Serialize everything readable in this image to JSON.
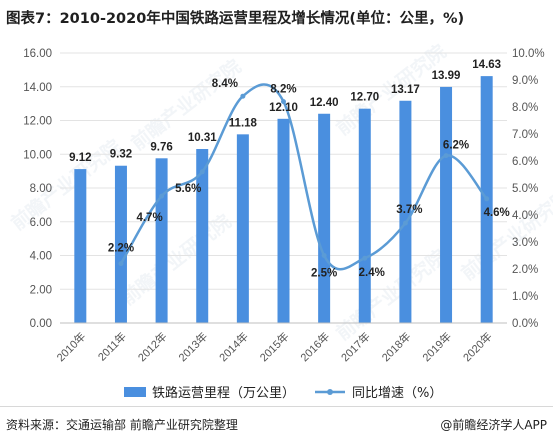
{
  "title": "图表7：2010-2020年中国铁路运营里程及增长情况(单位：公里，%)",
  "source": "资料来源：交通运输部 前瞻产业研究院整理",
  "credit": "@前瞻经济学人APP",
  "colors": {
    "bar": "#4a8fdf",
    "line": "#5b9bd5",
    "grid": "#e3e3e3",
    "axis_text": "#555555",
    "label_text": "#222222"
  },
  "chart_data": {
    "type": "bar",
    "categories": [
      "2010年",
      "2011年",
      "2012年",
      "2013年",
      "2014年",
      "2015年",
      "2016年",
      "2017年",
      "2018年",
      "2019年",
      "2020年"
    ],
    "series": [
      {
        "name": "铁路运营里程（万公里）",
        "type": "bar",
        "axis": "left",
        "values": [
          9.12,
          9.32,
          9.76,
          10.31,
          11.18,
          12.1,
          12.4,
          12.7,
          13.17,
          13.99,
          14.63
        ],
        "labels": [
          "9.12",
          "9.32",
          "9.76",
          "10.31",
          "11.18",
          "12.10",
          "12.40",
          "12.70",
          "13.17",
          "13.99",
          "14.63"
        ]
      },
      {
        "name": "同比增速（%）",
        "type": "line",
        "axis": "right",
        "smooth": true,
        "values": [
          null,
          2.2,
          4.7,
          5.6,
          8.4,
          8.2,
          2.5,
          2.4,
          3.7,
          6.2,
          4.6
        ],
        "labels": [
          "",
          "2.2%",
          "4.7%",
          "5.6%",
          "8.4%",
          "8.2%",
          "2.5%",
          "2.4%",
          "3.7%",
          "6.2%",
          "4.6%"
        ]
      }
    ],
    "y_left": {
      "ylim": [
        0,
        16
      ],
      "ticks": [
        "0.00",
        "2.00",
        "4.00",
        "6.00",
        "8.00",
        "10.00",
        "12.00",
        "14.00",
        "16.00"
      ]
    },
    "y_right": {
      "ylim": [
        0,
        10
      ],
      "ticks": [
        "0.0%",
        "1.0%",
        "2.0%",
        "3.0%",
        "4.0%",
        "5.0%",
        "6.0%",
        "7.0%",
        "8.0%",
        "9.0%",
        "10.0%"
      ]
    },
    "grid": true,
    "legend": "bottom",
    "watermark": "前瞻产业研究院"
  }
}
